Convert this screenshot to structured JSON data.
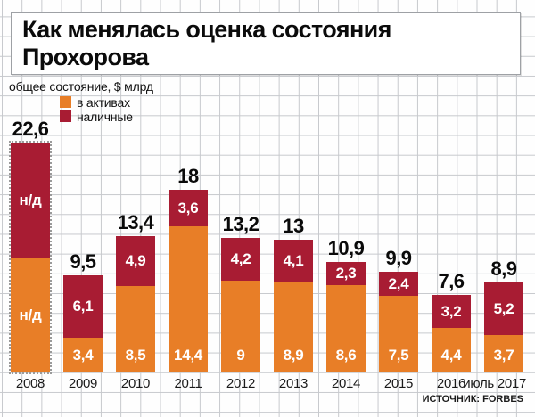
{
  "header": {
    "title": "Как менялась оценка состояния Прохорова"
  },
  "legend": {
    "axis_label": "общее состояние, $ млрд",
    "items": [
      {
        "label": "в активах",
        "color": "#e87e27"
      },
      {
        "label": "наличные",
        "color": "#a81c33"
      }
    ]
  },
  "source": {
    "label": "ИСТОЧНИК: FORBES"
  },
  "chart_data": {
    "type": "bar",
    "stacked": true,
    "title": "Как менялась оценка состояния Прохорова",
    "ylabel": "общее состояние, $ млрд",
    "legend_position": "top-left",
    "grid": true,
    "ylim": [
      0,
      23
    ],
    "categories": [
      "2008",
      "2009",
      "2010",
      "2011",
      "2012",
      "2013",
      "2014",
      "2015",
      "2016",
      "июль 2017"
    ],
    "totals": [
      22.6,
      9.5,
      13.4,
      18,
      13.2,
      13,
      10.9,
      9.9,
      7.6,
      8.9
    ],
    "totals_display": [
      "22,6",
      "9,5",
      "13,4",
      "18",
      "13,2",
      "13",
      "10,9",
      "9,9",
      "7,6",
      "8,9"
    ],
    "series": [
      {
        "name": "в активах",
        "color": "#e87e27",
        "values": [
          null,
          3.4,
          8.5,
          14.4,
          9,
          8.9,
          8.6,
          7.5,
          4.4,
          3.7
        ],
        "labels": [
          "н/д",
          "3,4",
          "8,5",
          "14,4",
          "9",
          "8,9",
          "8,6",
          "7,5",
          "4,4",
          "3,7"
        ]
      },
      {
        "name": "наличные",
        "color": "#a81c33",
        "values": [
          null,
          6.1,
          4.9,
          3.6,
          4.2,
          4.1,
          2.3,
          2.4,
          3.2,
          5.2
        ],
        "labels": [
          "н/д",
          "6,1",
          "4,9",
          "3,6",
          "4,2",
          "4,1",
          "2,3",
          "2,4",
          "3,2",
          "5,2"
        ]
      }
    ],
    "no_data_note": "2008 bar is dotted: segment split not disclosed (н/д)"
  }
}
